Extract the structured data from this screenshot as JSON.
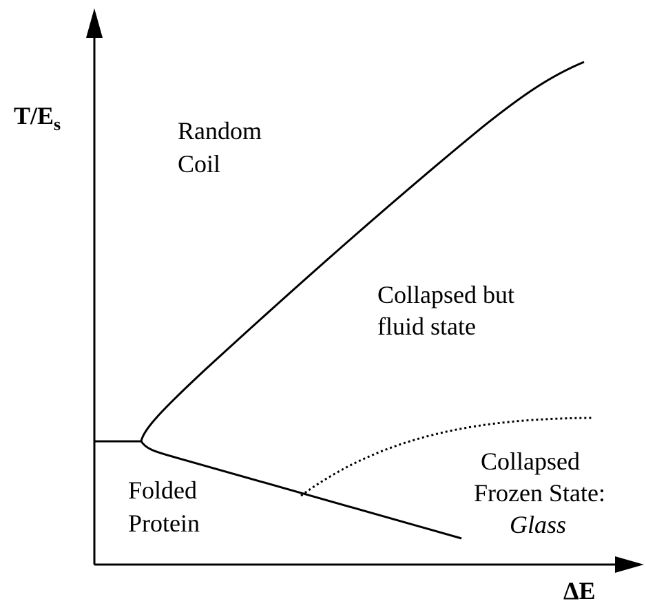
{
  "axes": {
    "y_label": {
      "main": "T/E",
      "subscript": "s"
    },
    "x_label": "ΔE"
  },
  "regions": {
    "random_coil": [
      "Random",
      "Coil"
    ],
    "collapsed_fluid": [
      "Collapsed but",
      "fluid state"
    ],
    "glass": [
      "Collapsed",
      "Frozen State:",
      "Glass"
    ],
    "folded": [
      "Folded",
      "Protein"
    ]
  }
}
